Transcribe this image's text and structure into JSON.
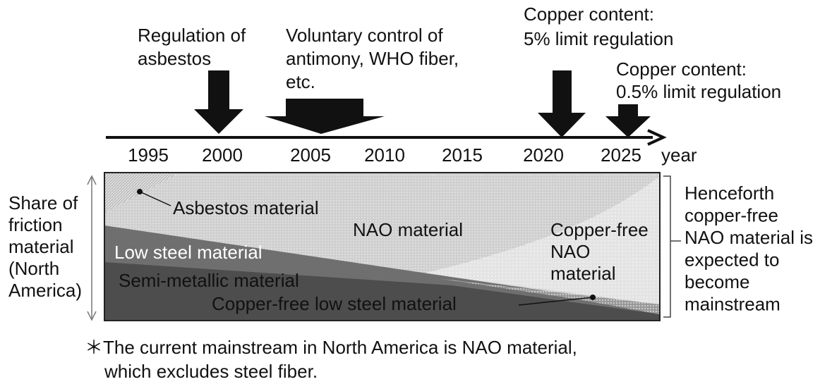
{
  "timeline": {
    "years": [
      "1995",
      "2000",
      "2005",
      "2010",
      "2015",
      "2020",
      "2025"
    ],
    "unit": "year"
  },
  "events": [
    {
      "lines": [
        "Regulation of",
        "asbestos"
      ]
    },
    {
      "lines": [
        "Voluntary control of",
        "antimony, WHO fiber,",
        "etc."
      ]
    },
    {
      "lines": [
        "Copper content:",
        "5% limit regulation"
      ]
    },
    {
      "lines": [
        "Copper content:",
        "0.5% limit regulation"
      ]
    }
  ],
  "y_label": [
    "Share of",
    "friction",
    "material",
    "(North",
    "America)"
  ],
  "regions": [
    "Asbestos material",
    "NAO material",
    "Low steel material",
    "Semi-metallic material",
    "Copper-free low steel material"
  ],
  "copper_free_nao": [
    "Copper-free",
    "NAO",
    "material"
  ],
  "outlook": [
    "Henceforth",
    "copper-free",
    "NAO material is",
    "expected to",
    "become",
    "mainstream"
  ],
  "footnote": [
    "＊The current mainstream in North America is NAO material,",
    "which excludes steel fiber."
  ]
}
